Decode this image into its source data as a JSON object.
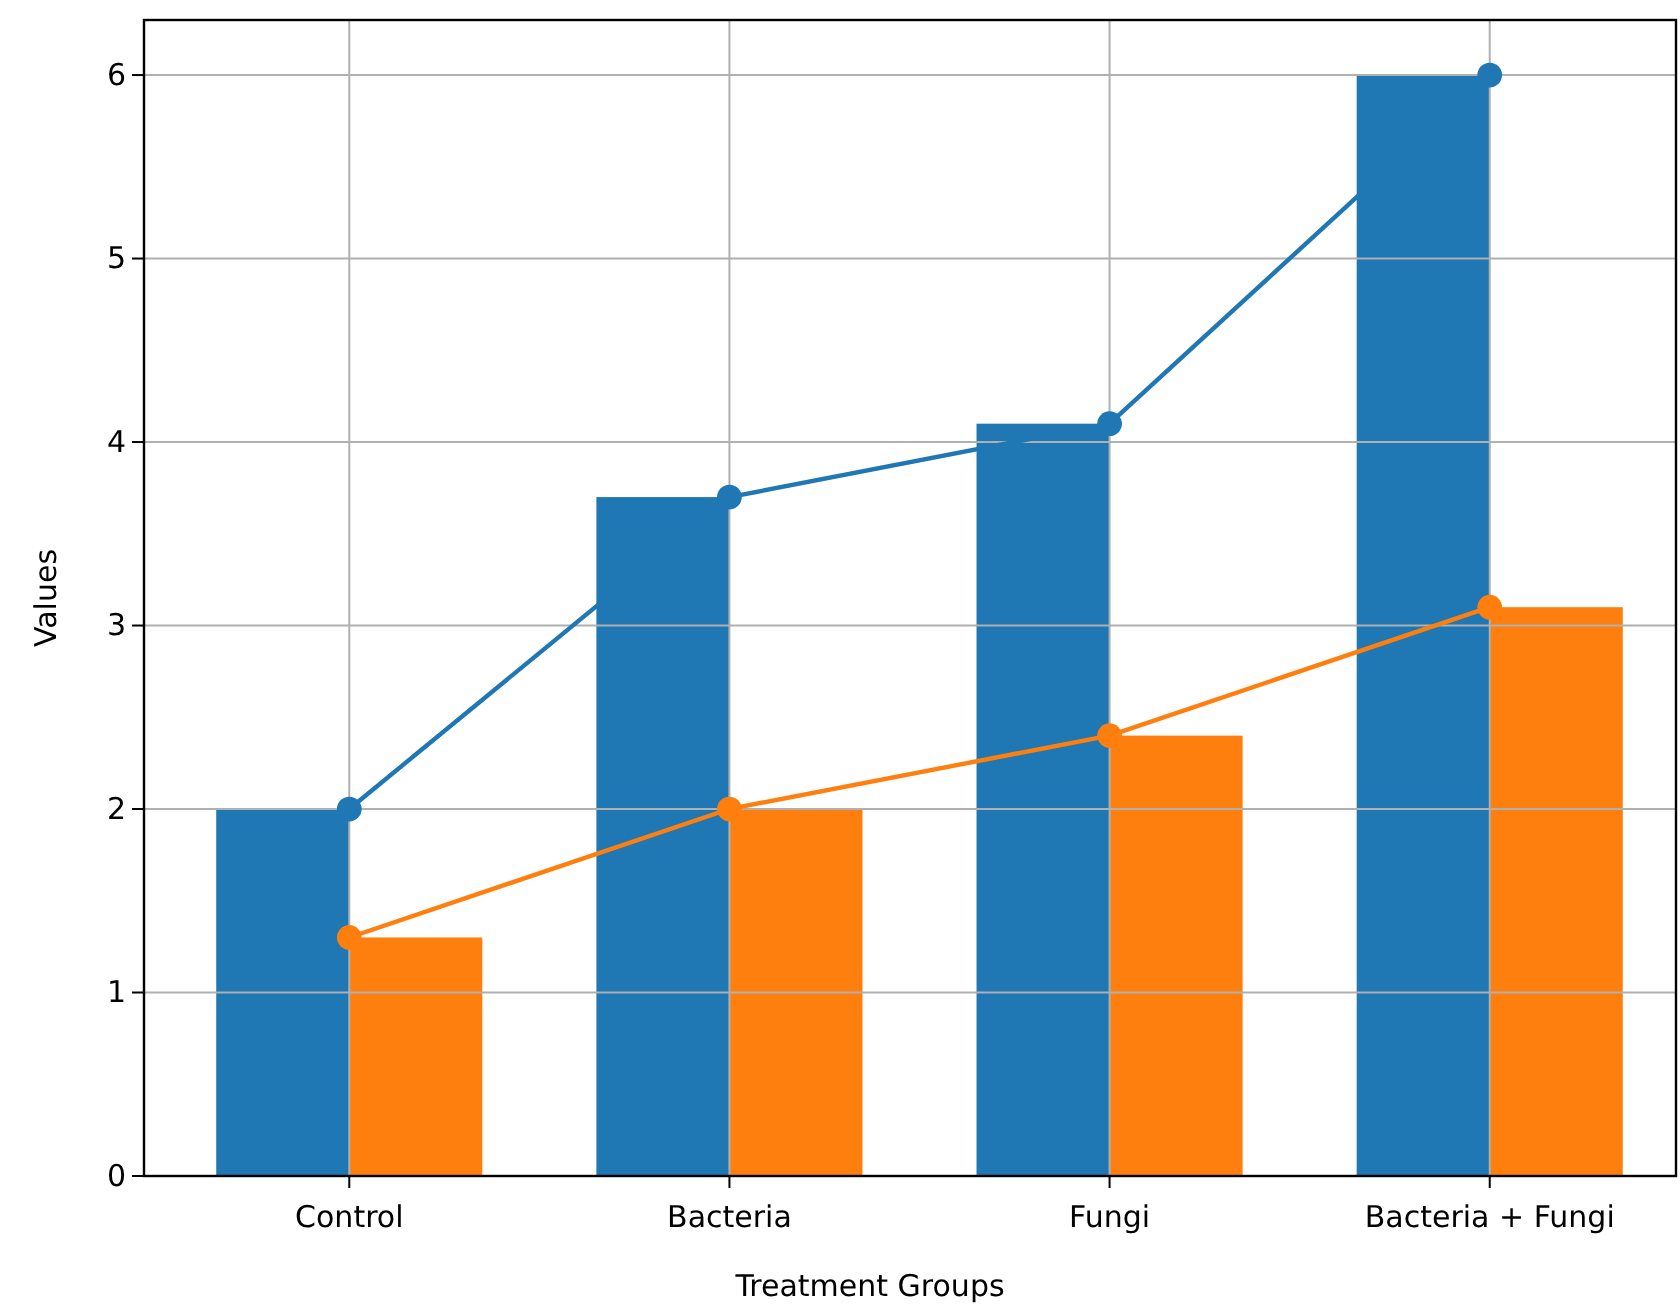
{
  "chart_data": {
    "type": "bar",
    "xlabel": "Treatment Groups",
    "ylabel": "Values",
    "categories": [
      "Control",
      "Bacteria",
      "Fungi",
      "Bacteria + Fungi"
    ],
    "series": [
      {
        "color": "#1f77b4",
        "values": [
          2,
          3.7,
          4.1,
          6
        ]
      },
      {
        "color": "#ff7f0e",
        "values": [
          1.3,
          2,
          2.4,
          3.1
        ]
      },
      {
        "type": "line",
        "color": "#1f77b4",
        "values": [
          2,
          3.7,
          4.1,
          6
        ],
        "marker": "circle"
      },
      {
        "type": "line",
        "color": "#ff7f0e",
        "values": [
          1.3,
          2,
          2.4,
          3.1
        ],
        "marker": "circle"
      }
    ],
    "ylim": [
      0,
      6.3
    ],
    "yticks": [
      0,
      1,
      2,
      3,
      4,
      5,
      6
    ],
    "grid": true
  }
}
